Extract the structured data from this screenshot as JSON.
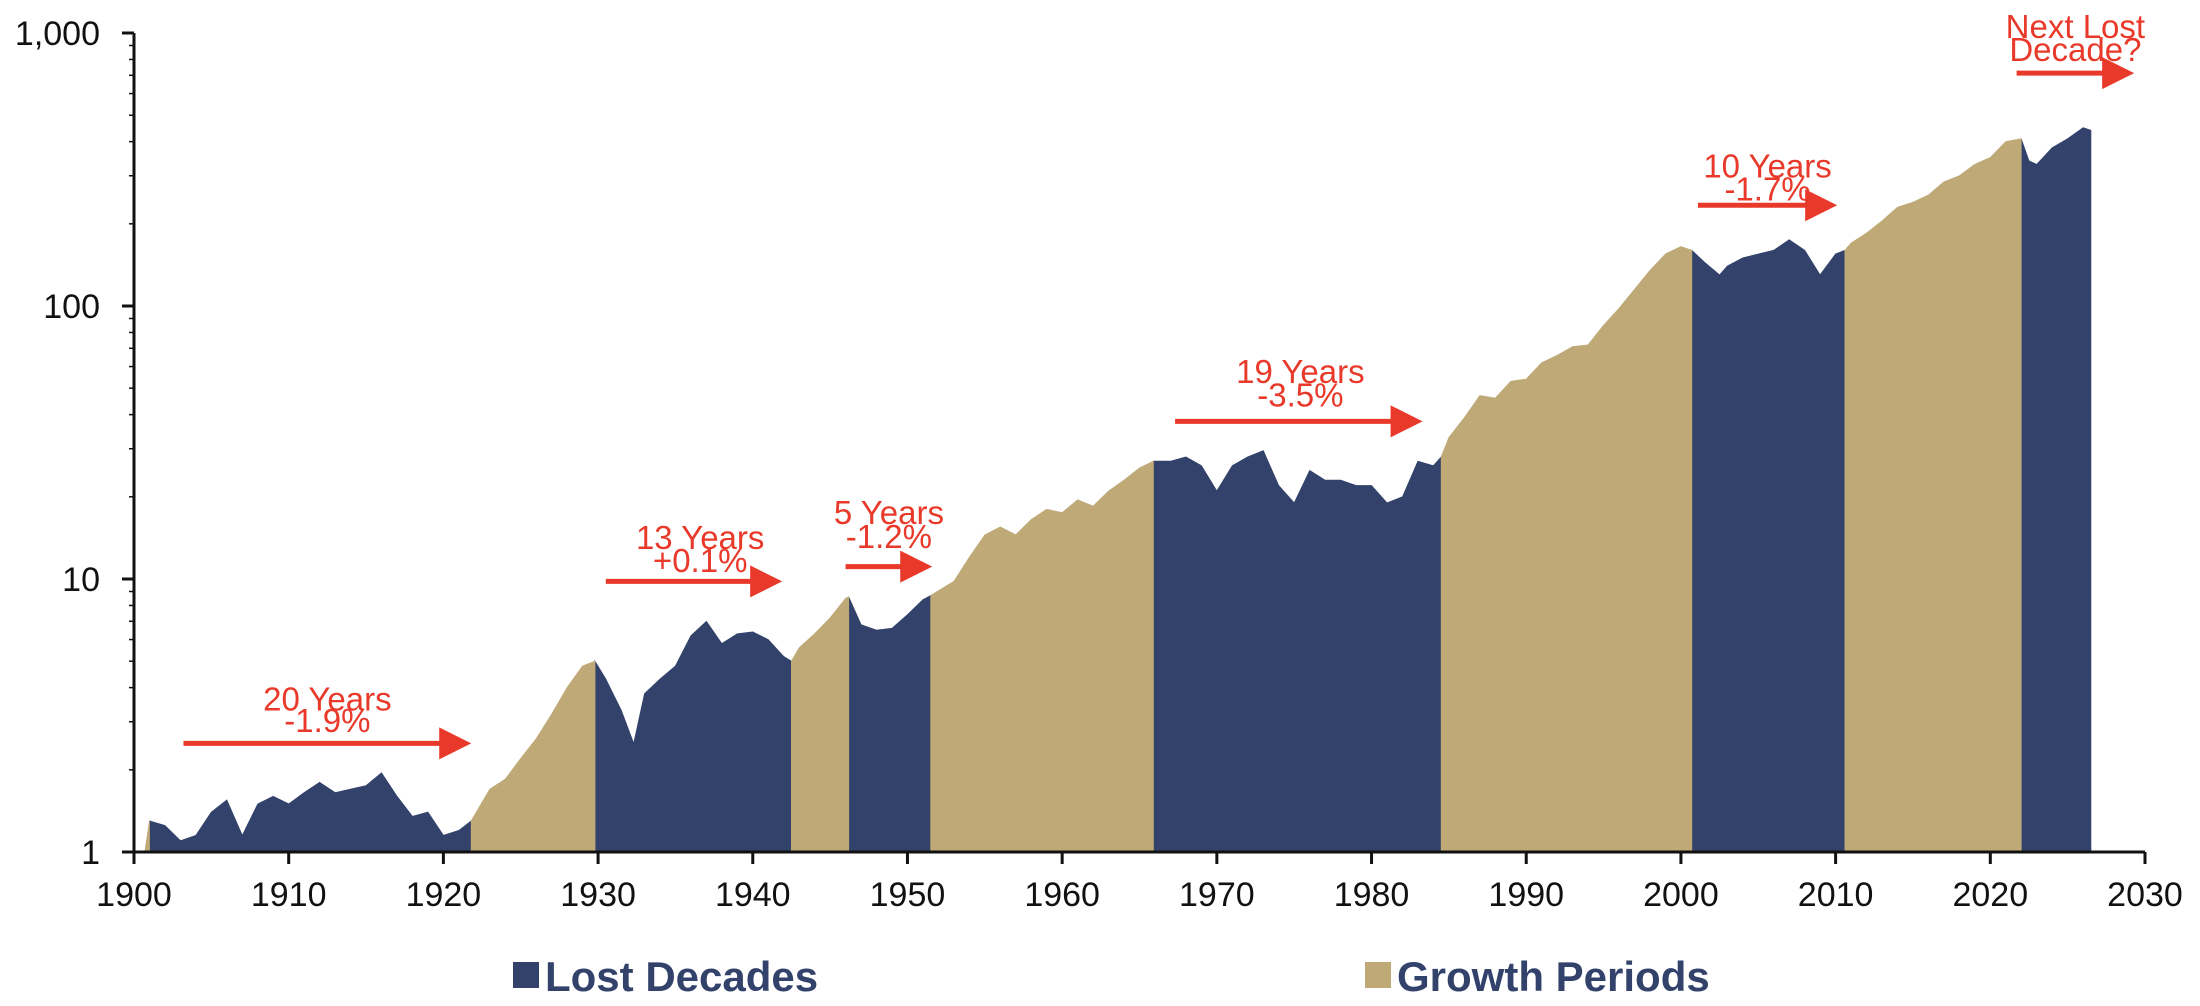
{
  "chart_data": {
    "type": "area",
    "title": "",
    "xlabel": "",
    "ylabel": "",
    "y_scale": "log",
    "xlim": [
      1900,
      2030
    ],
    "ylim": [
      1,
      1000
    ],
    "x_ticks": [
      1900,
      1910,
      1920,
      1930,
      1940,
      1950,
      1960,
      1970,
      1980,
      1990,
      2000,
      2010,
      2020,
      2030
    ],
    "y_ticks": [
      1,
      10,
      100,
      1000
    ],
    "x_tick_labels": [
      "1900",
      "1910",
      "1920",
      "1930",
      "1940",
      "1950",
      "1960",
      "1970",
      "1980",
      "1990",
      "2000",
      "2010",
      "2020",
      "2030"
    ],
    "y_tick_labels": [
      "1",
      "10",
      "100",
      "1,000"
    ],
    "grid": false,
    "legend_position": "bottom",
    "colors": {
      "lost": "#33426b",
      "growth": "#bea977",
      "annotation": "#e8392a"
    },
    "series": [
      {
        "name": "Lost Decades",
        "segments": [
          {
            "start": 1901,
            "end": 1921.8,
            "points": [
              [
                1901,
                1.3
              ],
              [
                1902,
                1.25
              ],
              [
                1903,
                1.1
              ],
              [
                1904,
                1.15
              ],
              [
                1905,
                1.4
              ],
              [
                1906,
                1.55
              ],
              [
                1907,
                1.15
              ],
              [
                1908,
                1.5
              ],
              [
                1909,
                1.6
              ],
              [
                1910,
                1.5
              ],
              [
                1911,
                1.65
              ],
              [
                1912,
                1.8
              ],
              [
                1913,
                1.65
              ],
              [
                1914,
                1.7
              ],
              [
                1915,
                1.75
              ],
              [
                1916,
                1.95
              ],
              [
                1917,
                1.6
              ],
              [
                1918,
                1.35
              ],
              [
                1919,
                1.4
              ],
              [
                1920,
                1.15
              ],
              [
                1921,
                1.2
              ],
              [
                1921.8,
                1.3
              ]
            ]
          },
          {
            "start": 1929.8,
            "end": 1942.5,
            "points": [
              [
                1929.8,
                5.0
              ],
              [
                1930.5,
                4.3
              ],
              [
                1931.5,
                3.3
              ],
              [
                1932.3,
                2.5
              ],
              [
                1933,
                3.8
              ],
              [
                1934,
                4.3
              ],
              [
                1935,
                4.8
              ],
              [
                1936,
                6.2
              ],
              [
                1937,
                7.0
              ],
              [
                1938,
                5.8
              ],
              [
                1939,
                6.3
              ],
              [
                1940,
                6.4
              ],
              [
                1941,
                6.0
              ],
              [
                1942,
                5.2
              ],
              [
                1942.5,
                5.0
              ]
            ]
          },
          {
            "start": 1946.2,
            "end": 1951.5,
            "points": [
              [
                1946.2,
                8.6
              ],
              [
                1947,
                6.8
              ],
              [
                1948,
                6.5
              ],
              [
                1949,
                6.6
              ],
              [
                1950,
                7.4
              ],
              [
                1951,
                8.4
              ],
              [
                1951.5,
                8.7
              ]
            ]
          },
          {
            "start": 1965.9,
            "end": 1984.5,
            "points": [
              [
                1965.9,
                27
              ],
              [
                1967,
                27
              ],
              [
                1968,
                28
              ],
              [
                1969,
                26
              ],
              [
                1970,
                21
              ],
              [
                1971,
                26
              ],
              [
                1972,
                28
              ],
              [
                1973,
                29.5
              ],
              [
                1974,
                22
              ],
              [
                1975,
                19
              ],
              [
                1976,
                25
              ],
              [
                1977,
                23
              ],
              [
                1978,
                23
              ],
              [
                1979,
                22
              ],
              [
                1980,
                22
              ],
              [
                1981,
                19
              ],
              [
                1982,
                20
              ],
              [
                1983,
                27
              ],
              [
                1984,
                26
              ],
              [
                1984.5,
                28
              ]
            ]
          },
          {
            "start": 2000.7,
            "end": 2010.6,
            "points": [
              [
                2000.7,
                160
              ],
              [
                2001.5,
                145
              ],
              [
                2002.5,
                130
              ],
              [
                2003,
                140
              ],
              [
                2004,
                150
              ],
              [
                2005,
                155
              ],
              [
                2006,
                160
              ],
              [
                2007,
                175
              ],
              [
                2008,
                160
              ],
              [
                2009,
                130
              ],
              [
                2010,
                155
              ],
              [
                2010.6,
                160
              ]
            ]
          },
          {
            "start": 2022,
            "end": 2026.5,
            "points": [
              [
                2022,
                410
              ],
              [
                2022.5,
                340
              ],
              [
                2023,
                330
              ],
              [
                2024,
                380
              ],
              [
                2025,
                410
              ],
              [
                2026,
                450
              ],
              [
                2026.5,
                440
              ]
            ]
          }
        ]
      },
      {
        "name": "Growth Periods",
        "segments": [
          {
            "start": 1900.7,
            "end": 1901,
            "points": [
              [
                1900.7,
                1.0
              ],
              [
                1901,
                1.3
              ]
            ]
          },
          {
            "start": 1921.8,
            "end": 1929.8,
            "points": [
              [
                1921.8,
                1.3
              ],
              [
                1923,
                1.7
              ],
              [
                1924,
                1.85
              ],
              [
                1925,
                2.2
              ],
              [
                1926,
                2.6
              ],
              [
                1927,
                3.2
              ],
              [
                1928,
                4.0
              ],
              [
                1929,
                4.8
              ],
              [
                1929.8,
                5.0
              ]
            ]
          },
          {
            "start": 1942.5,
            "end": 1946.2,
            "points": [
              [
                1942.5,
                5.0
              ],
              [
                1943,
                5.6
              ],
              [
                1944,
                6.3
              ],
              [
                1945,
                7.2
              ],
              [
                1946,
                8.5
              ],
              [
                1946.2,
                8.6
              ]
            ]
          },
          {
            "start": 1951.5,
            "end": 1965.9,
            "points": [
              [
                1951.5,
                8.7
              ],
              [
                1953,
                9.8
              ],
              [
                1954,
                12
              ],
              [
                1955,
                14.5
              ],
              [
                1956,
                15.5
              ],
              [
                1957,
                14.5
              ],
              [
                1958,
                16.5
              ],
              [
                1959,
                18
              ],
              [
                1960,
                17.5
              ],
              [
                1961,
                19.5
              ],
              [
                1962,
                18.5
              ],
              [
                1963,
                21
              ],
              [
                1964,
                23
              ],
              [
                1965,
                25.5
              ],
              [
                1965.9,
                27
              ]
            ]
          },
          {
            "start": 1984.5,
            "end": 2000.7,
            "points": [
              [
                1984.5,
                28
              ],
              [
                1985,
                33
              ],
              [
                1986,
                39
              ],
              [
                1987,
                47
              ],
              [
                1988,
                46
              ],
              [
                1989,
                53
              ],
              [
                1990,
                54
              ],
              [
                1991,
                62
              ],
              [
                1992,
                66
              ],
              [
                1993,
                71
              ],
              [
                1994,
                72
              ],
              [
                1995,
                85
              ],
              [
                1996,
                98
              ],
              [
                1997,
                115
              ],
              [
                1998,
                135
              ],
              [
                1999,
                155
              ],
              [
                2000,
                165
              ],
              [
                2000.7,
                160
              ]
            ]
          },
          {
            "start": 2010.6,
            "end": 2022,
            "points": [
              [
                2010.6,
                160
              ],
              [
                2011,
                170
              ],
              [
                2012,
                185
              ],
              [
                2013,
                205
              ],
              [
                2014,
                230
              ],
              [
                2015,
                240
              ],
              [
                2016,
                255
              ],
              [
                2017,
                285
              ],
              [
                2018,
                300
              ],
              [
                2019,
                330
              ],
              [
                2020,
                350
              ],
              [
                2021,
                400
              ],
              [
                2022,
                410
              ]
            ]
          }
        ]
      }
    ],
    "annotations": [
      {
        "id": "a1",
        "line1": "20 Years",
        "line2": "-1.9%",
        "arrow": [
          1903.2,
          1921.8
        ],
        "arrow_y": 2.5,
        "text_x": 1912.5,
        "text_y1": 3.3,
        "text_y2": 2.75
      },
      {
        "id": "a2",
        "line1": "13 Years",
        "line2": "+0.1%",
        "arrow": [
          1930.5,
          1941.9
        ],
        "arrow_y": 9.8,
        "text_x": 1936.6,
        "text_y1": 12.9,
        "text_y2": 10.6
      },
      {
        "id": "a3",
        "line1": "5 Years",
        "line2": "-1.2%",
        "arrow": [
          1946.0,
          1951.6
        ],
        "arrow_y": 11.1,
        "text_x": 1948.8,
        "text_y1": 15.9,
        "text_y2": 13.0
      },
      {
        "id": "a4",
        "line1": "19 Years",
        "line2": "-3.5%",
        "arrow": [
          1967.3,
          1983.3
        ],
        "arrow_y": 37.8,
        "text_x": 1975.4,
        "text_y1": 52.2,
        "text_y2": 42.9
      },
      {
        "id": "a5",
        "line1": "10 Years",
        "line2": "-1.7%",
        "arrow": [
          2001.1,
          2010.1
        ],
        "arrow_y": 234,
        "text_x": 2005.6,
        "text_y1": 295,
        "text_y2": 243
      },
      {
        "id": "a6",
        "line1": "Next Lost",
        "line2": "Decade?",
        "arrow": [
          2021.7,
          2029.3
        ],
        "arrow_y": 713,
        "text_x": 2025.5,
        "text_y1": 960,
        "text_y2": 790
      }
    ]
  },
  "legend": {
    "lost_label": "Lost Decades",
    "growth_label": "Growth Periods"
  }
}
